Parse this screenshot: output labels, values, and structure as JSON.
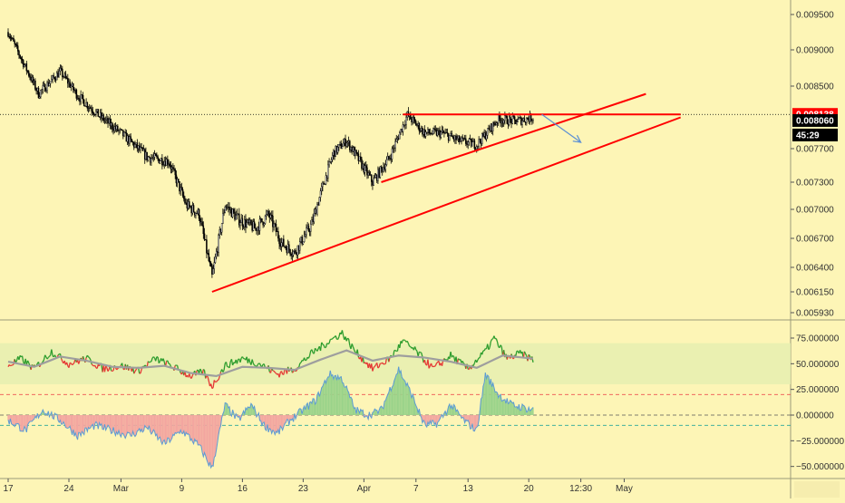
{
  "chart_data": [
    {
      "type": "candlestick",
      "title": "",
      "xlabel": "",
      "ylabel": "",
      "ylim": [
        0.00593,
        0.0098
      ],
      "y_ticks": [
        "0.009500",
        "0.009000",
        "0.008500",
        "0.007700",
        "0.007300",
        "0.007000",
        "0.006700",
        "0.006400",
        "0.006150",
        "0.005930"
      ],
      "y_tick_values": [
        0.0095,
        0.009,
        0.0085,
        0.0077,
        0.0073,
        0.007,
        0.0067,
        0.0064,
        0.00615,
        0.00593
      ],
      "x_ticks": [
        "17",
        "24",
        "Mar",
        "9",
        "16",
        "23",
        "Apr",
        "7",
        "13",
        "20",
        "12:30",
        "May"
      ],
      "x_tick_positions": [
        0,
        7,
        13,
        20,
        27,
        34,
        41,
        47,
        53,
        60,
        66,
        71
      ],
      "price_tags": [
        {
          "label": "0.008138",
          "value": 0.008138,
          "color": "#ff0000"
        },
        {
          "label": "0.008060",
          "value": 0.00806,
          "color": "#000000"
        },
        {
          "label": "45:29",
          "value": null,
          "color": "#000000"
        }
      ],
      "close_path_anchors": [
        [
          0.0,
          0.00925
        ],
        [
          1.5,
          0.00888
        ],
        [
          3.5,
          0.0084
        ],
        [
          6.0,
          0.0087
        ],
        [
          8.0,
          0.00838
        ],
        [
          10.5,
          0.00812
        ],
        [
          13.0,
          0.0079
        ],
        [
          16.0,
          0.0076
        ],
        [
          18.5,
          0.00755
        ],
        [
          20.5,
          0.00705
        ],
        [
          22.0,
          0.00695
        ],
        [
          23.5,
          0.0063
        ],
        [
          25.0,
          0.00705
        ],
        [
          26.5,
          0.0069
        ],
        [
          28.5,
          0.0068
        ],
        [
          30.0,
          0.00695
        ],
        [
          31.5,
          0.00665
        ],
        [
          33.0,
          0.00655
        ],
        [
          35.0,
          0.00685
        ],
        [
          37.5,
          0.00765
        ],
        [
          39.0,
          0.0078
        ],
        [
          40.5,
          0.00755
        ],
        [
          42.0,
          0.0073
        ],
        [
          44.0,
          0.0076
        ],
        [
          46.0,
          0.00813
        ],
        [
          48.0,
          0.0079
        ],
        [
          50.0,
          0.0079
        ],
        [
          52.0,
          0.0078
        ],
        [
          54.0,
          0.00775
        ],
        [
          56.5,
          0.00808
        ],
        [
          58.5,
          0.00805
        ],
        [
          60.5,
          0.0081
        ]
      ],
      "trendlines": [
        {
          "name": "lower-channel",
          "color": "#ff0000",
          "from": [
            23.5,
            0.00615
          ],
          "to": [
            77.5,
            0.0081
          ]
        },
        {
          "name": "upper-channel",
          "color": "#ff0000",
          "from": [
            43.0,
            0.0073
          ],
          "to": [
            73.5,
            0.0084
          ]
        },
        {
          "name": "resistance",
          "color": "#ff0000",
          "from": [
            45.5,
            0.008138
          ],
          "to": [
            77.5,
            0.008138
          ]
        },
        {
          "name": "projection",
          "color": "#5b8fd4",
          "from": [
            61.5,
            0.008138
          ],
          "to": [
            66.0,
            0.00778
          ]
        }
      ],
      "last_price_line": 0.008138,
      "grid": false,
      "legend": "none"
    },
    {
      "type": "line+area",
      "title": "",
      "ylim": [
        -55,
        88
      ],
      "y_ticks": [
        "75.000000",
        "50.000000",
        "25.000000",
        "0.000000",
        "−25.000000",
        "−50.000000"
      ],
      "y_tick_values": [
        75,
        50,
        25,
        0,
        -25,
        -50
      ],
      "band": [
        30,
        70
      ],
      "reference_lines": [
        {
          "value": 20,
          "color": "#ef5350",
          "style": "dashed"
        },
        {
          "value": 0,
          "color": "#555555",
          "style": "dashed"
        },
        {
          "value": -10,
          "color": "#26a69a",
          "style": "dashed"
        }
      ],
      "oscillator_anchors": [
        [
          0.0,
          48
        ],
        [
          1.5,
          55
        ],
        [
          3.0,
          45
        ],
        [
          5.0,
          62
        ],
        [
          7.0,
          50
        ],
        [
          9.0,
          55
        ],
        [
          11.0,
          45
        ],
        [
          13.0,
          48
        ],
        [
          15.0,
          43
        ],
        [
          17.0,
          55
        ],
        [
          19.0,
          47
        ],
        [
          21.0,
          38
        ],
        [
          22.5,
          42
        ],
        [
          23.5,
          28
        ],
        [
          25.0,
          48
        ],
        [
          27.0,
          55
        ],
        [
          29.0,
          50
        ],
        [
          31.0,
          40
        ],
        [
          33.0,
          45
        ],
        [
          35.0,
          60
        ],
        [
          37.0,
          72
        ],
        [
          38.5,
          80
        ],
        [
          40.0,
          62
        ],
        [
          42.0,
          45
        ],
        [
          44.0,
          55
        ],
        [
          45.5,
          72
        ],
        [
          47.0,
          62
        ],
        [
          49.0,
          45
        ],
        [
          51.0,
          58
        ],
        [
          53.0,
          45
        ],
        [
          55.0,
          62
        ],
        [
          56.0,
          75
        ],
        [
          57.5,
          55
        ],
        [
          59.0,
          60
        ],
        [
          60.5,
          54
        ]
      ],
      "signal_anchors": [
        [
          0.0,
          52
        ],
        [
          3.0,
          47
        ],
        [
          6.0,
          57
        ],
        [
          9.0,
          53
        ],
        [
          12.0,
          47
        ],
        [
          15.0,
          46
        ],
        [
          18.0,
          48
        ],
        [
          21.0,
          41
        ],
        [
          24.0,
          38
        ],
        [
          27.0,
          47
        ],
        [
          30.0,
          46
        ],
        [
          33.0,
          44
        ],
        [
          36.0,
          54
        ],
        [
          39.0,
          63
        ],
        [
          42.0,
          53
        ],
        [
          45.0,
          58
        ],
        [
          48.0,
          56
        ],
        [
          51.0,
          52
        ],
        [
          54.0,
          46
        ],
        [
          57.0,
          58
        ],
        [
          60.5,
          55
        ]
      ],
      "histogram_anchors": [
        [
          0.0,
          -5
        ],
        [
          2.0,
          -15
        ],
        [
          4.0,
          5
        ],
        [
          6.0,
          -5
        ],
        [
          8.0,
          -20
        ],
        [
          10.0,
          -10
        ],
        [
          12.0,
          -15
        ],
        [
          14.0,
          -20
        ],
        [
          16.0,
          -12
        ],
        [
          18.0,
          -28
        ],
        [
          20.0,
          -15
        ],
        [
          22.0,
          -30
        ],
        [
          23.5,
          -52
        ],
        [
          25.0,
          10
        ],
        [
          26.5,
          -5
        ],
        [
          28.0,
          10
        ],
        [
          29.5,
          -10
        ],
        [
          31.0,
          -18
        ],
        [
          32.5,
          -5
        ],
        [
          34.0,
          5
        ],
        [
          35.5,
          15
        ],
        [
          37.0,
          40
        ],
        [
          38.5,
          35
        ],
        [
          40.0,
          5
        ],
        [
          41.5,
          0
        ],
        [
          43.0,
          5
        ],
        [
          45.0,
          45
        ],
        [
          46.5,
          20
        ],
        [
          48.0,
          -10
        ],
        [
          49.5,
          -8
        ],
        [
          51.0,
          10
        ],
        [
          52.5,
          -5
        ],
        [
          54.0,
          -15
        ],
        [
          55.0,
          40
        ],
        [
          56.5,
          20
        ],
        [
          58.0,
          10
        ],
        [
          60.5,
          5
        ]
      ]
    }
  ]
}
